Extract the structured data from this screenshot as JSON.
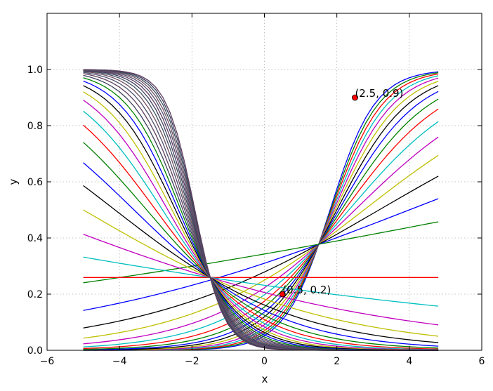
{
  "chart_data": {
    "type": "line",
    "title": "",
    "xlabel": "x",
    "ylabel": "y",
    "xlim": [
      -6,
      6
    ],
    "ylim": [
      0.0,
      1.2
    ],
    "xticks": [
      -6,
      -4,
      -2,
      0,
      2,
      4,
      6
    ],
    "yticks": [
      0.0,
      0.2,
      0.4,
      0.6,
      0.8,
      1.0
    ],
    "xtick_labels": [
      "−6",
      "−4",
      "−2",
      "0",
      "2",
      "4",
      "6"
    ],
    "ytick_labels": [
      "0.0",
      "0.2",
      "0.4",
      "0.6",
      "0.8",
      "1.0"
    ],
    "grid": true,
    "x_sample_range": [
      -5,
      4.8
    ],
    "x_sample_step": 0.2,
    "color_cycle": [
      "#0000ff",
      "#008000",
      "#ff0000",
      "#00bfbf",
      "#bf00bf",
      "#bfbf00",
      "#000000"
    ],
    "series_family": {
      "description_formula": "y = 1 / (1 + exp(-w*x - b))",
      "rising": [
        {
          "w": 1.6,
          "b": -2.9
        },
        {
          "w": 1.5,
          "b": -2.75
        },
        {
          "w": 1.4,
          "b": -2.6
        },
        {
          "w": 1.3,
          "b": -2.45
        },
        {
          "w": 1.2,
          "b": -2.3
        },
        {
          "w": 1.1,
          "b": -2.15
        },
        {
          "w": 1.0,
          "b": -2.0
        },
        {
          "w": 0.9,
          "b": -1.85
        },
        {
          "w": 0.8,
          "b": -1.7
        },
        {
          "w": 0.7,
          "b": -1.55
        },
        {
          "w": 0.6,
          "b": -1.4
        },
        {
          "w": 0.5,
          "b": -1.25
        },
        {
          "w": 0.4,
          "b": -1.1
        },
        {
          "w": 0.3,
          "b": -0.95
        },
        {
          "w": 0.2,
          "b": -0.8
        },
        {
          "w": 0.1,
          "b": -0.65
        },
        {
          "w": 0.0,
          "b": -1.05
        },
        {
          "w": -0.1,
          "b": -1.2
        },
        {
          "w": -0.2,
          "b": -1.35
        },
        {
          "w": -0.3,
          "b": -1.5
        },
        {
          "w": -0.4,
          "b": -1.65
        },
        {
          "w": -0.5,
          "b": -1.8
        }
      ],
      "falling": [
        {
          "w": -0.6,
          "b": -1.95
        },
        {
          "w": -0.7,
          "b": -2.1
        },
        {
          "w": -0.8,
          "b": -2.25
        },
        {
          "w": -0.9,
          "b": -2.4
        },
        {
          "w": -1.0,
          "b": -2.55
        },
        {
          "w": -1.1,
          "b": -2.7
        },
        {
          "w": -1.2,
          "b": -2.85
        },
        {
          "w": -1.3,
          "b": -3.0
        },
        {
          "w": -1.4,
          "b": -3.15
        },
        {
          "w": -1.5,
          "b": -3.3
        },
        {
          "w": -1.6,
          "b": -3.45
        },
        {
          "w": -1.7,
          "b": -3.6
        },
        {
          "w": -1.8,
          "b": -3.75
        },
        {
          "w": -1.9,
          "b": -3.9
        },
        {
          "w": -2.0,
          "b": -4.05
        },
        {
          "w": -2.1,
          "b": -4.2
        },
        {
          "w": -2.2,
          "b": -4.35
        },
        {
          "w": -2.3,
          "b": -4.5
        },
        {
          "w": -2.4,
          "b": -4.65
        },
        {
          "w": -2.5,
          "b": -4.8
        }
      ]
    },
    "points": [
      {
        "x": 0.5,
        "y": 0.2,
        "label": "(0.5, 0.2)",
        "color": "#ff0000"
      },
      {
        "x": 2.5,
        "y": 0.9,
        "label": "(2.5, 0.9)",
        "color": "#ff0000"
      }
    ]
  }
}
